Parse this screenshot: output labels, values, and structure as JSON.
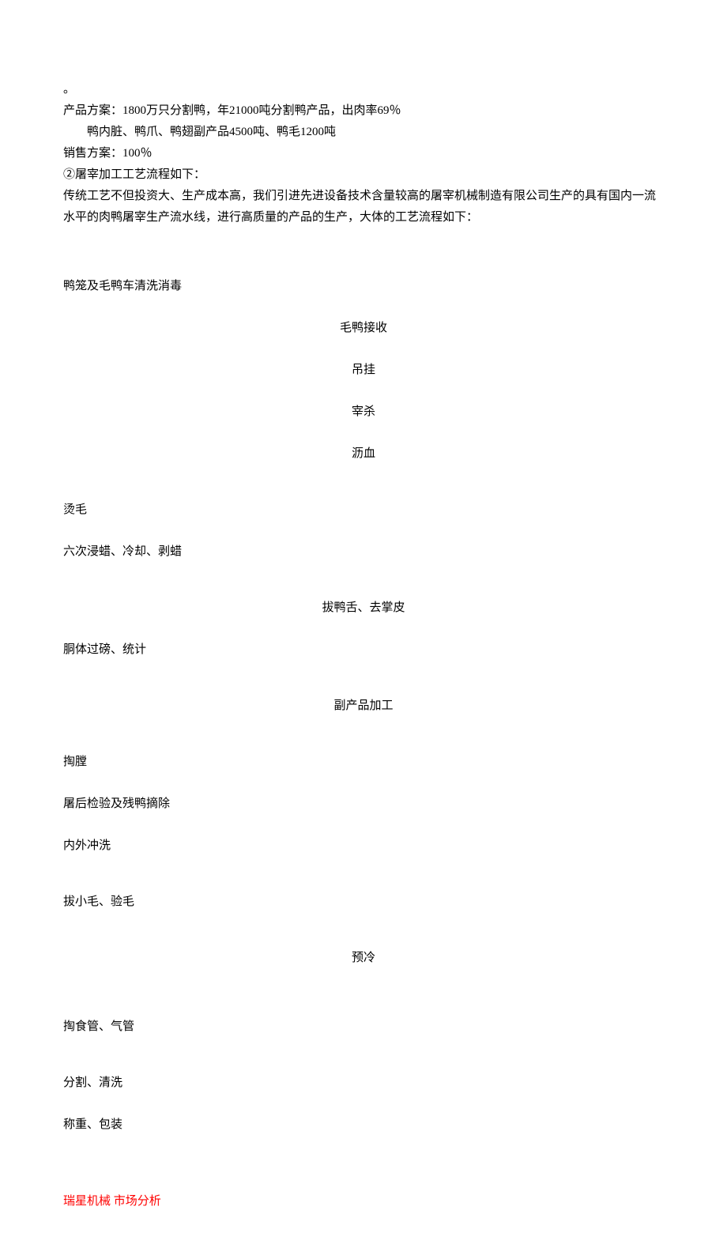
{
  "colors": {
    "text": "#000000",
    "footer": "#ff0000",
    "background": "#ffffff"
  },
  "typography": {
    "font_family": "SimSun",
    "font_size_pt": 11,
    "line_height": 1.8
  },
  "top_symbol": "。",
  "product_plan": {
    "line1": "产品方案：1800万只分割鸭，年21000吨分割鸭产品，出肉率69％",
    "line2": "鸭内脏、鸭爪、鸭翅副产品4500吨、鸭毛1200吨"
  },
  "sales_plan": "销售方案：100％",
  "process_heading": "②屠宰加工工艺流程如下：",
  "process_desc": "传统工艺不但投资大、生产成本高，我们引进先进设备技术含量较高的屠宰机械制造有限公司生产的具有国内一流水平的肉鸭屠宰生产流水线，进行高质量的产品的生产，大体的工艺流程如下：",
  "flow": {
    "step1": "鸭笼及毛鸭车清洗消毒",
    "step2": "毛鸭接收",
    "step3": "吊挂",
    "step4": "宰杀",
    "step5": "沥血",
    "step6": "烫毛",
    "step7": "六次浸蜡、冷却、剥蜡",
    "step8": "拔鸭舌、去掌皮",
    "step9": "胴体过磅、统计",
    "step10": "副产品加工",
    "step11": "掏膛",
    "step12": "屠后检验及残鸭摘除",
    "step13": "内外冲洗",
    "step14": "拔小毛、验毛",
    "step15": "预冷",
    "step16": "掏食管、气管",
    "step17": "分割、清洗",
    "step18": "称重、包装"
  },
  "footer": "瑞星机械 市场分析"
}
